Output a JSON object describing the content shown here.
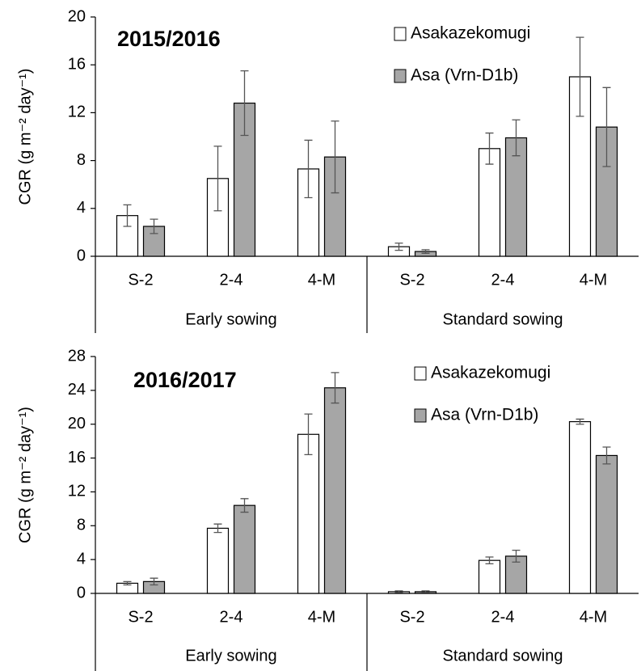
{
  "chart_data": [
    {
      "type": "bar",
      "title": "2015/2016",
      "ylabel": "CGR (g m⁻² day⁻¹)",
      "categories": [
        "S-2",
        "2-4",
        "4-M",
        "S-2",
        "2-4",
        "4-M"
      ],
      "groups": [
        "Early sowing",
        "Standard sowing"
      ],
      "series": [
        {
          "name": "Asakazekomugi",
          "color": "#ffffff",
          "values": [
            3.4,
            6.5,
            7.3,
            0.8,
            9.0,
            15.0
          ],
          "errors": [
            0.9,
            2.7,
            2.4,
            0.3,
            1.3,
            3.3
          ]
        },
        {
          "name": "Asa (Vrn-D1b)",
          "color": "#a6a6a6",
          "values": [
            2.5,
            12.8,
            8.3,
            0.4,
            9.9,
            10.8
          ],
          "errors": [
            0.6,
            2.7,
            3.0,
            0.15,
            1.5,
            3.3
          ]
        }
      ],
      "ylim": [
        0,
        20
      ],
      "yticks": [
        0,
        4,
        8,
        12,
        16,
        20
      ],
      "legend": "top-right"
    },
    {
      "type": "bar",
      "title": "2016/2017",
      "ylabel": "CGR (g m⁻² day⁻¹)",
      "categories": [
        "S-2",
        "2-4",
        "4-M",
        "S-2",
        "2-4",
        "4-M"
      ],
      "groups": [
        "Early sowing",
        "Standard sowing"
      ],
      "series": [
        {
          "name": "Asakazekomugi",
          "color": "#ffffff",
          "values": [
            1.2,
            7.7,
            18.8,
            0.2,
            3.9,
            20.3
          ],
          "errors": [
            0.2,
            0.5,
            2.4,
            0.1,
            0.4,
            0.3
          ]
        },
        {
          "name": "Asa (Vrn-D1b)",
          "color": "#a6a6a6",
          "values": [
            1.4,
            10.4,
            24.3,
            0.2,
            4.4,
            16.3
          ],
          "errors": [
            0.4,
            0.8,
            1.8,
            0.1,
            0.7,
            1.0
          ]
        }
      ],
      "ylim": [
        0,
        28
      ],
      "yticks": [
        0,
        4,
        8,
        12,
        16,
        20,
        24,
        28
      ],
      "legend": "top-right"
    }
  ]
}
